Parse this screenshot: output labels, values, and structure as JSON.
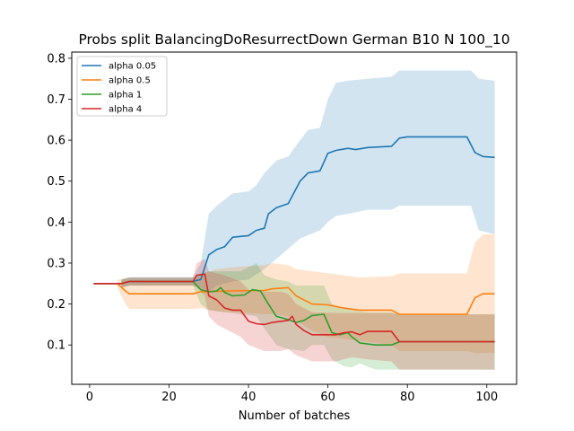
{
  "chart_data": {
    "type": "line",
    "title": "Probs split BalancingDoResurrectDown German B10 N 100_10",
    "xlabel": "Number of batches",
    "ylabel": "",
    "xlim": [
      -4.5,
      107.5
    ],
    "ylim": [
      0.004,
      0.815
    ],
    "xticks": [
      0,
      20,
      40,
      60,
      80,
      100
    ],
    "yticks": [
      0.1,
      0.2,
      0.3,
      0.4,
      0.5,
      0.6,
      0.7,
      0.8
    ],
    "grid": false,
    "legend_position": "top-left",
    "series": [
      {
        "name": "alpha 0.05",
        "color": "#1f77b4",
        "mean": [
          [
            1,
            0.25
          ],
          [
            8,
            0.25
          ],
          [
            10,
            0.255
          ],
          [
            26,
            0.255
          ],
          [
            28,
            0.26
          ],
          [
            30,
            0.32
          ],
          [
            32,
            0.333
          ],
          [
            34,
            0.34
          ],
          [
            36,
            0.363
          ],
          [
            40,
            0.367
          ],
          [
            42,
            0.38
          ],
          [
            44,
            0.385
          ],
          [
            45,
            0.42
          ],
          [
            47,
            0.435
          ],
          [
            50,
            0.445
          ],
          [
            53,
            0.5
          ],
          [
            55,
            0.52
          ],
          [
            58,
            0.525
          ],
          [
            60,
            0.568
          ],
          [
            62,
            0.575
          ],
          [
            65,
            0.58
          ],
          [
            67,
            0.577
          ],
          [
            70,
            0.582
          ],
          [
            76,
            0.585
          ],
          [
            78,
            0.605
          ],
          [
            80,
            0.608
          ],
          [
            95,
            0.608
          ],
          [
            97,
            0.57
          ],
          [
            99,
            0.56
          ],
          [
            102,
            0.558
          ]
        ],
        "upper": [
          [
            8,
            0.26
          ],
          [
            10,
            0.265
          ],
          [
            26,
            0.265
          ],
          [
            28,
            0.3
          ],
          [
            30,
            0.42
          ],
          [
            32,
            0.44
          ],
          [
            36,
            0.47
          ],
          [
            40,
            0.475
          ],
          [
            42,
            0.49
          ],
          [
            44,
            0.52
          ],
          [
            47,
            0.55
          ],
          [
            50,
            0.56
          ],
          [
            53,
            0.6
          ],
          [
            55,
            0.625
          ],
          [
            58,
            0.63
          ],
          [
            60,
            0.7
          ],
          [
            62,
            0.74
          ],
          [
            65,
            0.745
          ],
          [
            70,
            0.75
          ],
          [
            76,
            0.755
          ],
          [
            78,
            0.77
          ],
          [
            96,
            0.77
          ],
          [
            98,
            0.75
          ],
          [
            102,
            0.745
          ]
        ],
        "lower": [
          [
            8,
            0.24
          ],
          [
            10,
            0.245
          ],
          [
            26,
            0.245
          ],
          [
            28,
            0.24
          ],
          [
            30,
            0.23
          ],
          [
            32,
            0.245
          ],
          [
            36,
            0.255
          ],
          [
            40,
            0.26
          ],
          [
            44,
            0.285
          ],
          [
            47,
            0.31
          ],
          [
            50,
            0.335
          ],
          [
            53,
            0.36
          ],
          [
            58,
            0.38
          ],
          [
            60,
            0.4
          ],
          [
            62,
            0.415
          ],
          [
            65,
            0.42
          ],
          [
            70,
            0.43
          ],
          [
            76,
            0.43
          ],
          [
            78,
            0.44
          ],
          [
            96,
            0.44
          ],
          [
            98,
            0.38
          ],
          [
            102,
            0.37
          ]
        ]
      },
      {
        "name": "alpha 0.5",
        "color": "#ff7f0e",
        "mean": [
          [
            1,
            0.25
          ],
          [
            7,
            0.25
          ],
          [
            9,
            0.232
          ],
          [
            10,
            0.225
          ],
          [
            26,
            0.225
          ],
          [
            28,
            0.23
          ],
          [
            36,
            0.232
          ],
          [
            44,
            0.233
          ],
          [
            46,
            0.237
          ],
          [
            50,
            0.24
          ],
          [
            52,
            0.22
          ],
          [
            56,
            0.2
          ],
          [
            60,
            0.198
          ],
          [
            64,
            0.19
          ],
          [
            68,
            0.185
          ],
          [
            76,
            0.185
          ],
          [
            78,
            0.175
          ],
          [
            95,
            0.175
          ],
          [
            97,
            0.215
          ],
          [
            99,
            0.225
          ],
          [
            102,
            0.225
          ]
        ],
        "upper": [
          [
            7,
            0.26
          ],
          [
            9,
            0.26
          ],
          [
            26,
            0.26
          ],
          [
            28,
            0.27
          ],
          [
            32,
            0.285
          ],
          [
            36,
            0.29
          ],
          [
            44,
            0.295
          ],
          [
            46,
            0.3
          ],
          [
            50,
            0.295
          ],
          [
            52,
            0.285
          ],
          [
            56,
            0.28
          ],
          [
            60,
            0.275
          ],
          [
            64,
            0.27
          ],
          [
            68,
            0.265
          ],
          [
            76,
            0.268
          ],
          [
            78,
            0.275
          ],
          [
            95,
            0.275
          ],
          [
            97,
            0.35
          ],
          [
            99,
            0.37
          ],
          [
            102,
            0.37
          ]
        ],
        "lower": [
          [
            7,
            0.24
          ],
          [
            9,
            0.2
          ],
          [
            10,
            0.188
          ],
          [
            26,
            0.188
          ],
          [
            28,
            0.19
          ],
          [
            32,
            0.182
          ],
          [
            36,
            0.18
          ],
          [
            44,
            0.175
          ],
          [
            46,
            0.175
          ],
          [
            50,
            0.17
          ],
          [
            52,
            0.16
          ],
          [
            56,
            0.135
          ],
          [
            60,
            0.12
          ],
          [
            64,
            0.115
          ],
          [
            68,
            0.11
          ],
          [
            76,
            0.1
          ],
          [
            78,
            0.085
          ],
          [
            95,
            0.085
          ],
          [
            97,
            0.08
          ],
          [
            99,
            0.08
          ],
          [
            102,
            0.08
          ]
        ]
      },
      {
        "name": "alpha 1",
        "color": "#2ca02c",
        "mean": [
          [
            1,
            0.25
          ],
          [
            8,
            0.25
          ],
          [
            10,
            0.255
          ],
          [
            26,
            0.255
          ],
          [
            28,
            0.235
          ],
          [
            30,
            0.23
          ],
          [
            32,
            0.232
          ],
          [
            33,
            0.24
          ],
          [
            34,
            0.228
          ],
          [
            36,
            0.22
          ],
          [
            39,
            0.222
          ],
          [
            41,
            0.235
          ],
          [
            43,
            0.232
          ],
          [
            45,
            0.2
          ],
          [
            47,
            0.17
          ],
          [
            50,
            0.162
          ],
          [
            52,
            0.155
          ],
          [
            54,
            0.16
          ],
          [
            56,
            0.172
          ],
          [
            59,
            0.175
          ],
          [
            61,
            0.13
          ],
          [
            63,
            0.125
          ],
          [
            65,
            0.13
          ],
          [
            66,
            0.12
          ],
          [
            68,
            0.105
          ],
          [
            72,
            0.1
          ],
          [
            76,
            0.1
          ],
          [
            78,
            0.108
          ],
          [
            102,
            0.108
          ]
        ],
        "upper": [
          [
            8,
            0.26
          ],
          [
            10,
            0.265
          ],
          [
            26,
            0.265
          ],
          [
            28,
            0.275
          ],
          [
            30,
            0.28
          ],
          [
            34,
            0.28
          ],
          [
            38,
            0.28
          ],
          [
            42,
            0.3
          ],
          [
            44,
            0.27
          ],
          [
            47,
            0.26
          ],
          [
            50,
            0.255
          ],
          [
            52,
            0.245
          ],
          [
            56,
            0.245
          ],
          [
            59,
            0.245
          ],
          [
            61,
            0.2
          ],
          [
            64,
            0.19
          ],
          [
            66,
            0.185
          ],
          [
            70,
            0.18
          ],
          [
            76,
            0.18
          ],
          [
            78,
            0.175
          ],
          [
            102,
            0.175
          ]
        ],
        "lower": [
          [
            8,
            0.24
          ],
          [
            10,
            0.245
          ],
          [
            26,
            0.245
          ],
          [
            28,
            0.2
          ],
          [
            30,
            0.185
          ],
          [
            34,
            0.18
          ],
          [
            38,
            0.175
          ],
          [
            42,
            0.17
          ],
          [
            44,
            0.14
          ],
          [
            47,
            0.1
          ],
          [
            50,
            0.09
          ],
          [
            54,
            0.085
          ],
          [
            56,
            0.1
          ],
          [
            59,
            0.1
          ],
          [
            61,
            0.065
          ],
          [
            64,
            0.048
          ],
          [
            66,
            0.045
          ],
          [
            68,
            0.055
          ],
          [
            72,
            0.04
          ],
          [
            76,
            0.04
          ],
          [
            78,
            0.04
          ],
          [
            102,
            0.04
          ]
        ]
      },
      {
        "name": "alpha 4",
        "color": "#d62728",
        "mean": [
          [
            1,
            0.25
          ],
          [
            8,
            0.25
          ],
          [
            10,
            0.255
          ],
          [
            26,
            0.255
          ],
          [
            27,
            0.27
          ],
          [
            29,
            0.273
          ],
          [
            30,
            0.22
          ],
          [
            32,
            0.21
          ],
          [
            34,
            0.19
          ],
          [
            36,
            0.185
          ],
          [
            38,
            0.185
          ],
          [
            40,
            0.158
          ],
          [
            42,
            0.152
          ],
          [
            44,
            0.15
          ],
          [
            46,
            0.155
          ],
          [
            50,
            0.16
          ],
          [
            51,
            0.17
          ],
          [
            52,
            0.15
          ],
          [
            54,
            0.135
          ],
          [
            56,
            0.125
          ],
          [
            62,
            0.125
          ],
          [
            64,
            0.13
          ],
          [
            66,
            0.132
          ],
          [
            68,
            0.125
          ],
          [
            70,
            0.133
          ],
          [
            76,
            0.133
          ],
          [
            78,
            0.108
          ],
          [
            102,
            0.108
          ]
        ],
        "upper": [
          [
            8,
            0.26
          ],
          [
            10,
            0.265
          ],
          [
            26,
            0.265
          ],
          [
            27,
            0.3
          ],
          [
            29,
            0.31
          ],
          [
            30,
            0.28
          ],
          [
            34,
            0.27
          ],
          [
            38,
            0.255
          ],
          [
            40,
            0.235
          ],
          [
            44,
            0.23
          ],
          [
            48,
            0.23
          ],
          [
            50,
            0.225
          ],
          [
            52,
            0.2
          ],
          [
            56,
            0.18
          ],
          [
            62,
            0.178
          ],
          [
            66,
            0.178
          ],
          [
            70,
            0.178
          ],
          [
            76,
            0.178
          ],
          [
            78,
            0.175
          ],
          [
            102,
            0.175
          ]
        ],
        "lower": [
          [
            8,
            0.24
          ],
          [
            10,
            0.245
          ],
          [
            26,
            0.245
          ],
          [
            27,
            0.24
          ],
          [
            29,
            0.22
          ],
          [
            30,
            0.17
          ],
          [
            32,
            0.15
          ],
          [
            34,
            0.14
          ],
          [
            38,
            0.12
          ],
          [
            40,
            0.1
          ],
          [
            44,
            0.085
          ],
          [
            48,
            0.085
          ],
          [
            50,
            0.09
          ],
          [
            52,
            0.075
          ],
          [
            56,
            0.06
          ],
          [
            62,
            0.06
          ],
          [
            66,
            0.07
          ],
          [
            70,
            0.065
          ],
          [
            76,
            0.06
          ],
          [
            78,
            0.04
          ],
          [
            102,
            0.04
          ]
        ]
      }
    ]
  }
}
